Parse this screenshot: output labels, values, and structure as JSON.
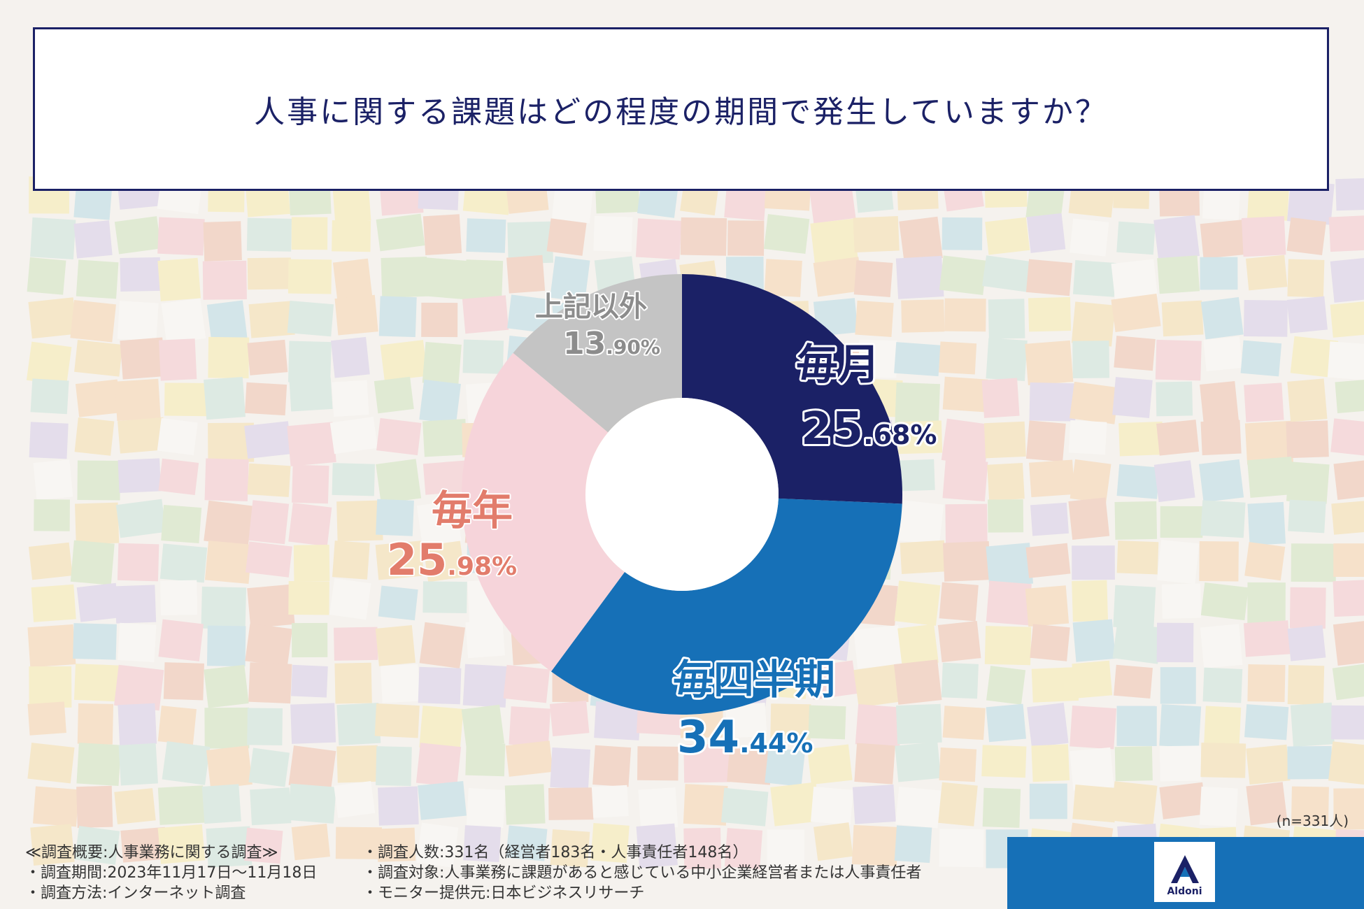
{
  "title": "人事に関する課題はどの程度の期間で発生していますか？",
  "chart_data": {
    "type": "pie",
    "subtype": "donut",
    "title": "人事に関する課題はどの程度の期間で発生していますか？",
    "slices": [
      {
        "label": "毎月",
        "value": 25.68,
        "value_int": "25",
        "value_dec": ".68%",
        "color": "#1b2166"
      },
      {
        "label": "毎四半期",
        "value": 34.44,
        "value_int": "34",
        "value_dec": ".44%",
        "color": "#1670b7"
      },
      {
        "label": "毎年",
        "value": 25.98,
        "value_int": "25",
        "value_dec": ".98%",
        "color": "#f6d4da"
      },
      {
        "label": "上記以外",
        "value": 13.9,
        "value_int": "13",
        "value_dec": ".90%",
        "color": "#c4c4c4"
      }
    ],
    "start": "12 o'clock",
    "direction": "clockwise",
    "sample_size": "(n=331人)"
  },
  "label_colors": {
    "monthly": "#1b2166",
    "quarterly": "#1670b7",
    "yearly": "#e27c6b",
    "other": "#8c8c8c"
  },
  "survey": {
    "heading": "≪調査概要:人事業務に関する調査≫",
    "period": "・調査期間:2023年11月17日〜11月18日",
    "method": "・調査方法:インターネット調査",
    "respondents": "・調査人数:331名（経営者183名・人事責任者148名）",
    "target": "・調査対象:人事業務に課題があると感じている中小企業経営者または人事責任者",
    "provider": "・モニター提供元:日本ビジネスリサーチ"
  },
  "brand": {
    "name": "Aldoni",
    "color": "#1670b7",
    "icon": "aldoni-logo-icon"
  }
}
